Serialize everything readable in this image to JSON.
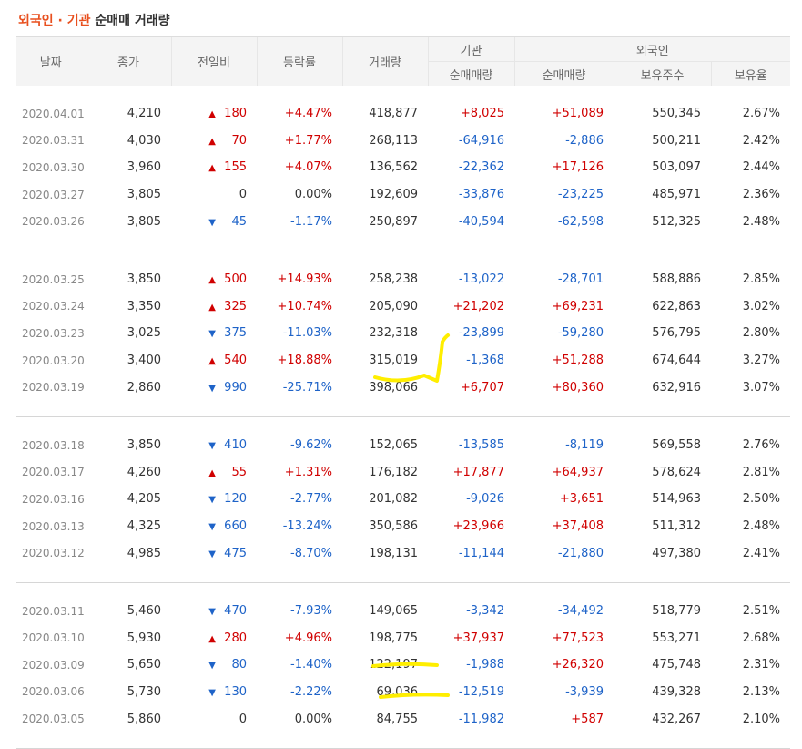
{
  "title": {
    "part1": "외국인 · 기관",
    "part2": "순매매 거래량"
  },
  "headers": {
    "date": "날짜",
    "close": "종가",
    "change": "전일비",
    "rate": "등락률",
    "volume": "거래량",
    "institution": "기관",
    "foreign": "외국인",
    "inst_net": "순매매량",
    "foreign_net": "순매매량",
    "holdings": "보유주수",
    "holding_ratio": "보유율"
  },
  "groups": [
    [
      {
        "date": "2020.04.01",
        "close": "4,210",
        "dir": "up",
        "change": "180",
        "rate": "+4.47%",
        "volume": "418,877",
        "inst": "+8,025",
        "foreign": "+51,089",
        "holdings": "550,345",
        "ratio": "2.67%"
      },
      {
        "date": "2020.03.31",
        "close": "4,030",
        "dir": "up",
        "change": "70",
        "rate": "+1.77%",
        "volume": "268,113",
        "inst": "-64,916",
        "foreign": "-2,886",
        "holdings": "500,211",
        "ratio": "2.42%"
      },
      {
        "date": "2020.03.30",
        "close": "3,960",
        "dir": "up",
        "change": "155",
        "rate": "+4.07%",
        "volume": "136,562",
        "inst": "-22,362",
        "foreign": "+17,126",
        "holdings": "503,097",
        "ratio": "2.44%"
      },
      {
        "date": "2020.03.27",
        "close": "3,805",
        "dir": "none",
        "change": "0",
        "rate": "0.00%",
        "volume": "192,609",
        "inst": "-33,876",
        "foreign": "-23,225",
        "holdings": "485,971",
        "ratio": "2.36%"
      },
      {
        "date": "2020.03.26",
        "close": "3,805",
        "dir": "dn",
        "change": "45",
        "rate": "-1.17%",
        "volume": "250,897",
        "inst": "-40,594",
        "foreign": "-62,598",
        "holdings": "512,325",
        "ratio": "2.48%"
      }
    ],
    [
      {
        "date": "2020.03.25",
        "close": "3,850",
        "dir": "up",
        "change": "500",
        "rate": "+14.93%",
        "volume": "258,238",
        "inst": "-13,022",
        "foreign": "-28,701",
        "holdings": "588,886",
        "ratio": "2.85%"
      },
      {
        "date": "2020.03.24",
        "close": "3,350",
        "dir": "up",
        "change": "325",
        "rate": "+10.74%",
        "volume": "205,090",
        "inst": "+21,202",
        "foreign": "+69,231",
        "holdings": "622,863",
        "ratio": "3.02%"
      },
      {
        "date": "2020.03.23",
        "close": "3,025",
        "dir": "dn",
        "change": "375",
        "rate": "-11.03%",
        "volume": "232,318",
        "inst": "-23,899",
        "foreign": "-59,280",
        "holdings": "576,795",
        "ratio": "2.80%"
      },
      {
        "date": "2020.03.20",
        "close": "3,400",
        "dir": "up",
        "change": "540",
        "rate": "+18.88%",
        "volume": "315,019",
        "inst": "-1,368",
        "foreign": "+51,288",
        "holdings": "674,644",
        "ratio": "3.27%"
      },
      {
        "date": "2020.03.19",
        "close": "2,860",
        "dir": "dn",
        "change": "990",
        "rate": "-25.71%",
        "volume": "398,066",
        "inst": "+6,707",
        "foreign": "+80,360",
        "holdings": "632,916",
        "ratio": "3.07%"
      }
    ],
    [
      {
        "date": "2020.03.18",
        "close": "3,850",
        "dir": "dn",
        "change": "410",
        "rate": "-9.62%",
        "volume": "152,065",
        "inst": "-13,585",
        "foreign": "-8,119",
        "holdings": "569,558",
        "ratio": "2.76%"
      },
      {
        "date": "2020.03.17",
        "close": "4,260",
        "dir": "up",
        "change": "55",
        "rate": "+1.31%",
        "volume": "176,182",
        "inst": "+17,877",
        "foreign": "+64,937",
        "holdings": "578,624",
        "ratio": "2.81%"
      },
      {
        "date": "2020.03.16",
        "close": "4,205",
        "dir": "dn",
        "change": "120",
        "rate": "-2.77%",
        "volume": "201,082",
        "inst": "-9,026",
        "foreign": "+3,651",
        "holdings": "514,963",
        "ratio": "2.50%"
      },
      {
        "date": "2020.03.13",
        "close": "4,325",
        "dir": "dn",
        "change": "660",
        "rate": "-13.24%",
        "volume": "350,586",
        "inst": "+23,966",
        "foreign": "+37,408",
        "holdings": "511,312",
        "ratio": "2.48%"
      },
      {
        "date": "2020.03.12",
        "close": "4,985",
        "dir": "dn",
        "change": "475",
        "rate": "-8.70%",
        "volume": "198,131",
        "inst": "-11,144",
        "foreign": "-21,880",
        "holdings": "497,380",
        "ratio": "2.41%"
      }
    ],
    [
      {
        "date": "2020.03.11",
        "close": "5,460",
        "dir": "dn",
        "change": "470",
        "rate": "-7.93%",
        "volume": "149,065",
        "inst": "-3,342",
        "foreign": "-34,492",
        "holdings": "518,779",
        "ratio": "2.51%"
      },
      {
        "date": "2020.03.10",
        "close": "5,930",
        "dir": "up",
        "change": "280",
        "rate": "+4.96%",
        "volume": "198,775",
        "inst": "+37,937",
        "foreign": "+77,523",
        "holdings": "553,271",
        "ratio": "2.68%"
      },
      {
        "date": "2020.03.09",
        "close": "5,650",
        "dir": "dn",
        "change": "80",
        "rate": "-1.40%",
        "volume": "122,197",
        "inst": "-1,988",
        "foreign": "+26,320",
        "holdings": "475,748",
        "ratio": "2.31%"
      },
      {
        "date": "2020.03.06",
        "close": "5,730",
        "dir": "dn",
        "change": "130",
        "rate": "-2.22%",
        "volume": "69,036",
        "inst": "-12,519",
        "foreign": "-3,939",
        "holdings": "439,328",
        "ratio": "2.13%"
      },
      {
        "date": "2020.03.05",
        "close": "5,860",
        "dir": "none",
        "change": "0",
        "rate": "0.00%",
        "volume": "84,755",
        "inst": "-11,982",
        "foreign": "+587",
        "holdings": "432,267",
        "ratio": "2.10%"
      }
    ]
  ],
  "colors": {
    "up": "#d00000",
    "down": "#1e63c8",
    "accent": "#e8501f",
    "highlighter": "#ffee00"
  },
  "icons": {
    "up": "triangle-up-icon",
    "down": "triangle-down-icon"
  }
}
